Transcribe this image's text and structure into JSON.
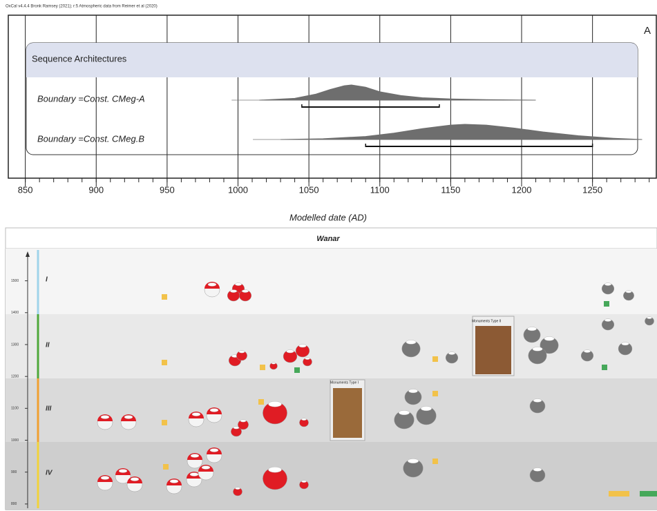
{
  "chart_data": {
    "type": "density",
    "header": "OxCal v4.4.4 Bronk Ramsey (2021); r:5 Atmospheric data from Reimer et al (2020)",
    "panel_label": "A",
    "group_label": "Sequence Architectures",
    "xlabel": "Modelled date (AD)",
    "xlim": [
      838,
      1295
    ],
    "xticks": [
      850,
      900,
      950,
      1000,
      1050,
      1100,
      1150,
      1200,
      1250
    ],
    "color": "#6e6e6e",
    "series": [
      {
        "name": "Boundary =Const. CMeg-A",
        "x": [
          1015,
          1040,
          1055,
          1065,
          1075,
          1080,
          1090,
          1100,
          1115,
          1130,
          1150,
          1175,
          1210
        ],
        "values": [
          0,
          0.12,
          0.4,
          0.7,
          0.95,
          1,
          0.85,
          0.55,
          0.3,
          0.16,
          0.08,
          0.03,
          0
        ],
        "range": [
          1045,
          1142
        ]
      },
      {
        "name": "Boundary =Const. CMeg.B",
        "x": [
          1030,
          1060,
          1090,
          1110,
          1130,
          1150,
          1160,
          1175,
          1195,
          1215,
          1240,
          1265,
          1285
        ],
        "values": [
          0,
          0.05,
          0.2,
          0.42,
          0.72,
          0.95,
          1,
          0.95,
          0.75,
          0.5,
          0.25,
          0.08,
          0
        ],
        "range": [
          1090,
          1250
        ]
      }
    ]
  },
  "panel_b": {
    "title": "Wanar",
    "phases": [
      "I",
      "II",
      "III",
      "IV"
    ],
    "ylim": [
      778,
      1601
    ],
    "yticks": [
      1500,
      1400,
      1300,
      1200,
      1100,
      1000,
      900,
      800
    ],
    "annotations": [
      "Monuments Type II",
      "Monuments Type I"
    ]
  }
}
